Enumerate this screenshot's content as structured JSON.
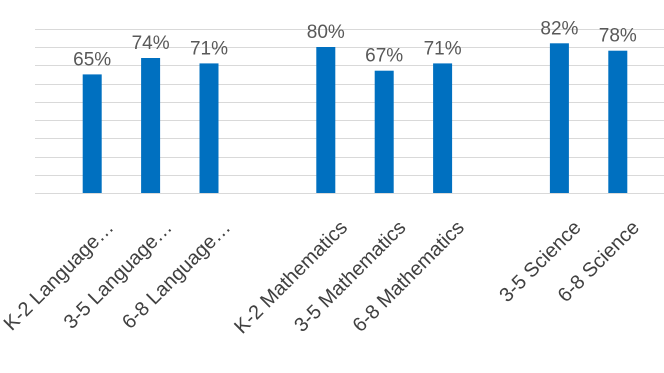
{
  "chart_data": {
    "type": "bar",
    "categories": [
      "K-2 Language…",
      "3-5 Language…",
      "6-8 Language…",
      "",
      "K-2 Mathematics",
      "3-5 Mathematics",
      "6-8 Mathematics",
      "",
      "3-5 Science",
      "6-8 Science"
    ],
    "values": [
      65,
      74,
      71,
      null,
      80,
      67,
      71,
      null,
      82,
      78
    ],
    "data_labels": [
      "65%",
      "74%",
      "71%",
      "",
      "80%",
      "67%",
      "71%",
      "",
      "82%",
      "78%"
    ],
    "unit": "%",
    "ylim": [
      0,
      90
    ],
    "grid": true,
    "gridline_step": 10,
    "bar_color": "#0070c0",
    "gridline_color": "#d9d9d9",
    "label_color": "#595959"
  }
}
